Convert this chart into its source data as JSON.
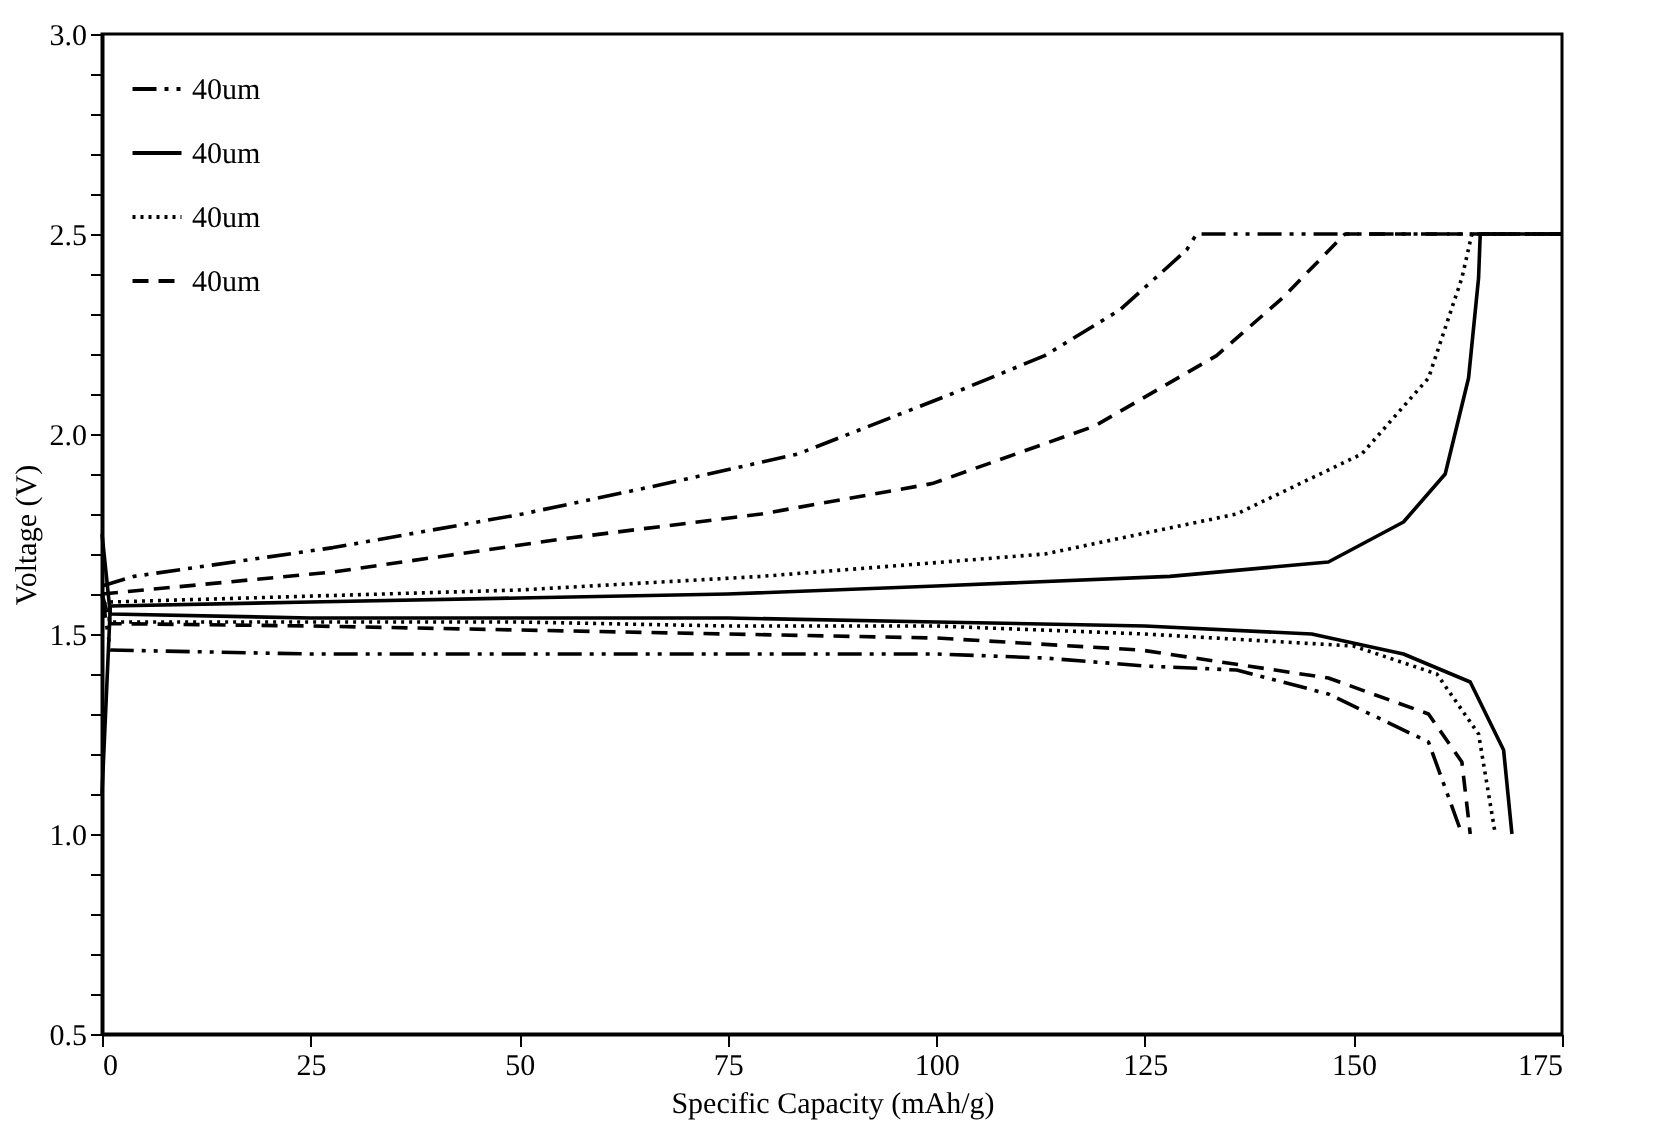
{
  "chart_data": {
    "type": "line",
    "xlabel": "Specific Capacity (mAh/g)",
    "ylabel": "Voltage (V)",
    "xlim": [
      0,
      175
    ],
    "xticks": [
      0,
      25,
      50,
      75,
      100,
      125,
      150,
      175
    ],
    "ylim": [
      0.5,
      3.0
    ],
    "yticks": [
      {
        "value": 0.5,
        "label": "0.5"
      },
      {
        "value": 0.6,
        "label": null
      },
      {
        "value": 0.7,
        "label": null
      },
      {
        "value": 0.8,
        "label": null
      },
      {
        "value": 0.9,
        "label": null
      },
      {
        "value": 1.0,
        "label": "1.0"
      },
      {
        "value": 1.1,
        "label": null
      },
      {
        "value": 1.2,
        "label": null
      },
      {
        "value": 1.3,
        "label": null
      },
      {
        "value": 1.4,
        "label": null
      },
      {
        "value": 1.5,
        "label": "1.5"
      },
      {
        "value": 1.6,
        "label": null
      },
      {
        "value": 1.7,
        "label": null
      },
      {
        "value": 1.8,
        "label": null
      },
      {
        "value": 1.9,
        "label": null
      },
      {
        "value": 2.0,
        "label": "2.0"
      },
      {
        "value": 2.1,
        "label": null
      },
      {
        "value": 2.2,
        "label": null
      },
      {
        "value": 2.3,
        "label": null
      },
      {
        "value": 2.4,
        "label": null
      },
      {
        "value": 2.5,
        "label": "2.5"
      },
      {
        "value": 2.6,
        "label": null
      },
      {
        "value": 2.7,
        "label": null
      },
      {
        "value": 2.8,
        "label": null
      },
      {
        "value": 2.9,
        "label": null
      },
      {
        "value": 3.0,
        "label": "3.0"
      }
    ],
    "grid": false,
    "legend": "top left",
    "marker": "none",
    "series": [
      {
        "name": "40um",
        "color": "#000000",
        "line_style": "dashdot",
        "x": [
          0,
          3.8,
          27.7,
          50.4,
          67.6,
          83.4,
          101.8,
          113,
          122,
          130,
          131.2,
          175
        ],
        "values": [
          1.62,
          1.644,
          1.716,
          1.8,
          1.876,
          1.95,
          2.1,
          2.196,
          2.31,
          2.46,
          2.5,
          2.5
        ]
      },
      {
        "name": "40um",
        "color": "#000000",
        "line_style": "solid",
        "x": [
          0,
          1,
          25,
          50,
          75,
          100,
          128,
          147,
          156,
          161,
          163.8,
          165,
          165.2,
          175
        ],
        "values": [
          1.1,
          1.57,
          1.58,
          1.59,
          1.6,
          1.62,
          1.644,
          1.68,
          1.78,
          1.9,
          2.14,
          2.39,
          2.5,
          2.5
        ]
      },
      {
        "name": "40um",
        "color": "#000000",
        "line_style": "dotted",
        "x": [
          0,
          1,
          50,
          79,
          113,
          136,
          151,
          159,
          163,
          164.2,
          175
        ],
        "values": [
          1.58,
          1.58,
          1.61,
          1.644,
          1.7,
          1.8,
          1.95,
          2.14,
          2.39,
          2.5,
          2.5
        ]
      },
      {
        "name": "40um",
        "color": "#000000",
        "line_style": "dashed",
        "x": [
          0,
          27.7,
          56,
          79,
          99.5,
          119,
          133.6,
          141.5,
          148.5,
          149,
          175
        ],
        "values": [
          1.6,
          1.655,
          1.74,
          1.8,
          1.876,
          2.02,
          2.196,
          2.34,
          2.49,
          2.5,
          2.5
        ]
      },
      {
        "color": "#000000",
        "line_style": "dashdot",
        "x": [
          0,
          1,
          25,
          50,
          75,
          100,
          113,
          125,
          136,
          147,
          159,
          163
        ],
        "values": [
          1.6,
          1.46,
          1.45,
          1.45,
          1.45,
          1.45,
          1.44,
          1.42,
          1.41,
          1.35,
          1.23,
          1.0
        ]
      },
      {
        "color": "#000000",
        "line_style": "solid",
        "x": [
          0,
          1,
          25,
          50,
          75,
          100,
          125,
          145,
          156,
          164,
          168,
          169
        ],
        "values": [
          1.75,
          1.55,
          1.54,
          1.54,
          1.54,
          1.53,
          1.52,
          1.5,
          1.45,
          1.38,
          1.21,
          1.0
        ]
      },
      {
        "color": "#000000",
        "line_style": "dotted",
        "x": [
          0,
          1,
          25,
          50,
          75,
          100,
          125,
          150,
          160,
          165,
          167
        ],
        "values": [
          1.6,
          1.53,
          1.53,
          1.53,
          1.52,
          1.52,
          1.5,
          1.47,
          1.4,
          1.25,
          1.0
        ]
      },
      {
        "color": "#000000",
        "line_style": "dashed",
        "x": [
          0,
          1,
          25,
          50,
          75,
          100,
          124.5,
          147,
          159,
          163,
          164
        ],
        "values": [
          1.6,
          1.526,
          1.52,
          1.51,
          1.5,
          1.49,
          1.46,
          1.39,
          1.3,
          1.18,
          1.0
        ]
      }
    ]
  }
}
